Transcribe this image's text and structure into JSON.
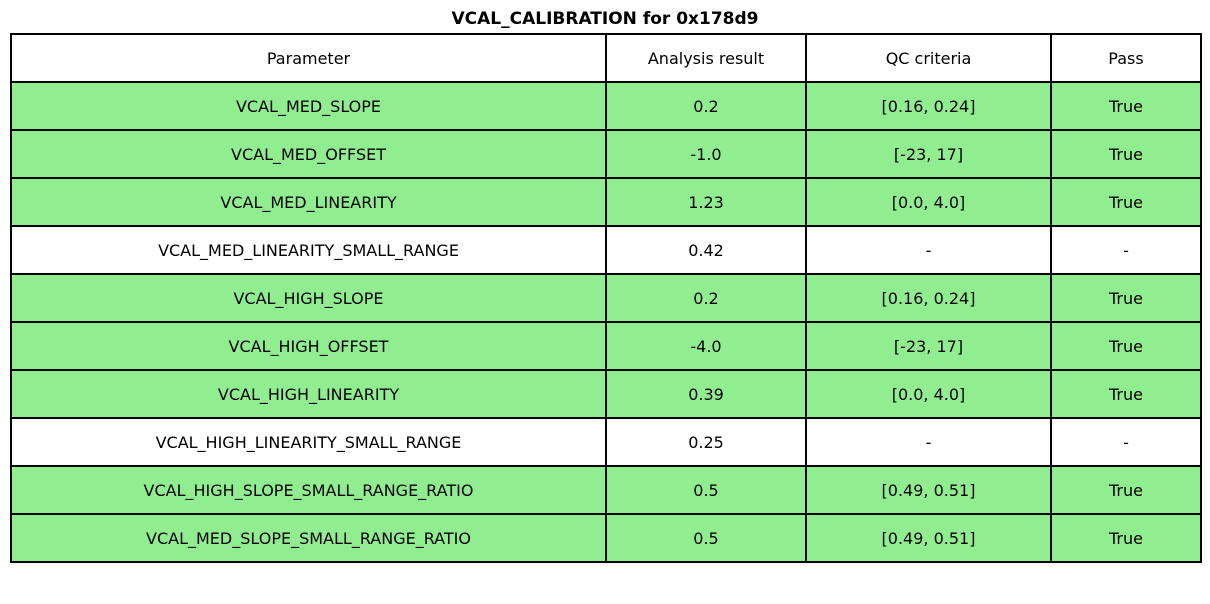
{
  "title": "VCAL_CALIBRATION for 0x178d9",
  "colors": {
    "pass_row_green": "#90EE90",
    "row_white": "#ffffff",
    "border": "#000000",
    "text": "#000000"
  },
  "table": {
    "columns": [
      "Parameter",
      "Analysis result",
      "QC criteria",
      "Pass"
    ],
    "rows": [
      {
        "parameter": "VCAL_MED_SLOPE",
        "analysis_result": "0.2",
        "qc_criteria": "[0.16, 0.24]",
        "pass": "True"
      },
      {
        "parameter": "VCAL_MED_OFFSET",
        "analysis_result": "-1.0",
        "qc_criteria": "[-23, 17]",
        "pass": "True"
      },
      {
        "parameter": "VCAL_MED_LINEARITY",
        "analysis_result": "1.23",
        "qc_criteria": "[0.0, 4.0]",
        "pass": "True"
      },
      {
        "parameter": "VCAL_MED_LINEARITY_SMALL_RANGE",
        "analysis_result": "0.42",
        "qc_criteria": "-",
        "pass": "-"
      },
      {
        "parameter": "VCAL_HIGH_SLOPE",
        "analysis_result": "0.2",
        "qc_criteria": "[0.16, 0.24]",
        "pass": "True"
      },
      {
        "parameter": "VCAL_HIGH_OFFSET",
        "analysis_result": "-4.0",
        "qc_criteria": "[-23, 17]",
        "pass": "True"
      },
      {
        "parameter": "VCAL_HIGH_LINEARITY",
        "analysis_result": "0.39",
        "qc_criteria": "[0.0, 4.0]",
        "pass": "True"
      },
      {
        "parameter": "VCAL_HIGH_LINEARITY_SMALL_RANGE",
        "analysis_result": "0.25",
        "qc_criteria": "-",
        "pass": "-"
      },
      {
        "parameter": "VCAL_HIGH_SLOPE_SMALL_RANGE_RATIO",
        "analysis_result": "0.5",
        "qc_criteria": "[0.49, 0.51]",
        "pass": "True"
      },
      {
        "parameter": "VCAL_MED_SLOPE_SMALL_RANGE_RATIO",
        "analysis_result": "0.5",
        "qc_criteria": "[0.49, 0.51]",
        "pass": "True"
      }
    ]
  }
}
